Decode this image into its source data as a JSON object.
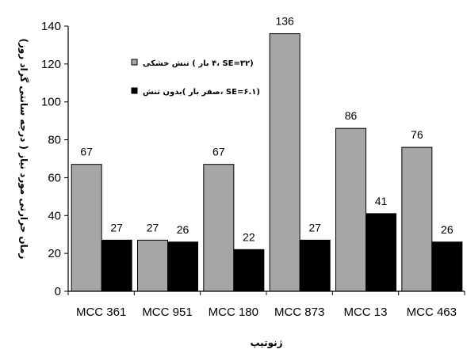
{
  "chart_data": {
    "type": "bar",
    "title": "",
    "xlabel": "ژنوتیپ",
    "ylabel": "زمان حرارتی مورد نیاز ( درجه سانتی گراد روز)",
    "ylim": [
      0,
      140
    ],
    "yticks": [
      0,
      20,
      40,
      60,
      80,
      100,
      120,
      140
    ],
    "categories": [
      "MCC 361",
      "MCC 951",
      "MCC 180",
      "MCC 873",
      "MCC 13",
      "MCC 463"
    ],
    "series": [
      {
        "name": "تنش خشکی ( ۴ بار، SE=۳۲)",
        "color": "#a6a6a6",
        "values": [
          67,
          27,
          67,
          136,
          86,
          76
        ]
      },
      {
        "name": "بدون تنش( صفر بار، SE=۶.۱)",
        "color": "#000000",
        "values": [
          27,
          26,
          22,
          27,
          41,
          26
        ]
      }
    ],
    "grid": false,
    "legend": "top-left"
  }
}
